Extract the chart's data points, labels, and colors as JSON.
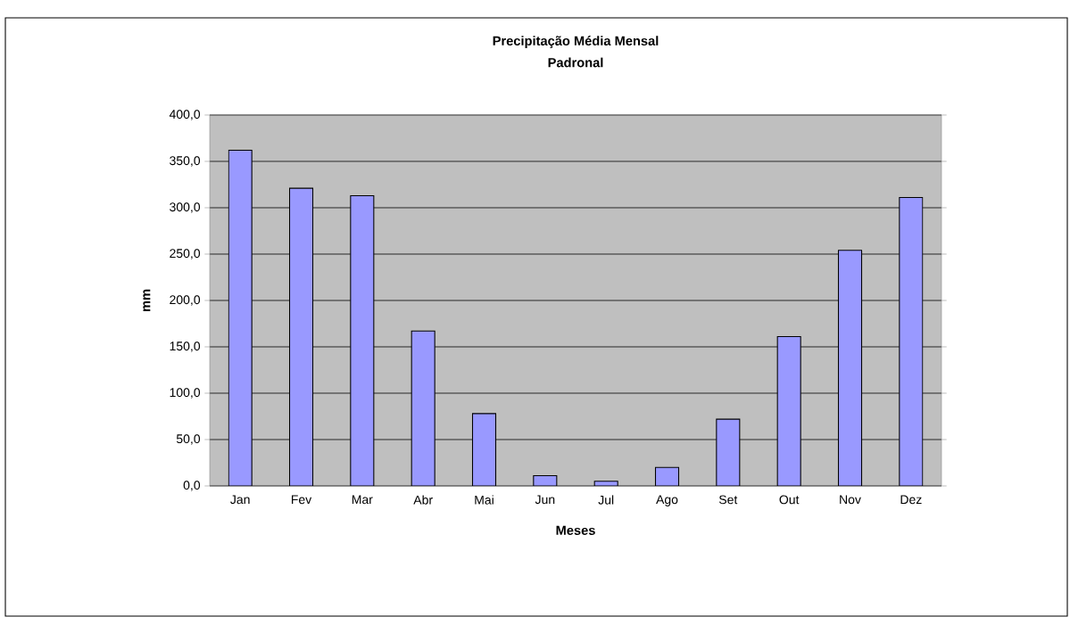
{
  "chart_data": {
    "type": "bar",
    "title": "Precipitação Média Mensal",
    "subtitle": "Padronal",
    "xlabel": "Meses",
    "ylabel": "mm",
    "categories": [
      "Jan",
      "Fev",
      "Mar",
      "Abr",
      "Mai",
      "Jun",
      "Jul",
      "Ago",
      "Set",
      "Out",
      "Nov",
      "Dez"
    ],
    "values": [
      362,
      321,
      313,
      167,
      78,
      11,
      5,
      20,
      72,
      161,
      254,
      311
    ],
    "color": "#9999ff",
    "ylim": [
      0,
      400
    ],
    "yticks": [
      {
        "value": 0,
        "label": "0,0"
      },
      {
        "value": 50,
        "label": "50,0"
      },
      {
        "value": 100,
        "label": "100,0"
      },
      {
        "value": 150,
        "label": "150,0"
      },
      {
        "value": 200,
        "label": "200,0"
      },
      {
        "value": 250,
        "label": "250,0"
      },
      {
        "value": 300,
        "label": "300,0"
      },
      {
        "value": 350,
        "label": "350,0"
      },
      {
        "value": 400,
        "label": "400,0"
      }
    ],
    "grid": "y"
  }
}
